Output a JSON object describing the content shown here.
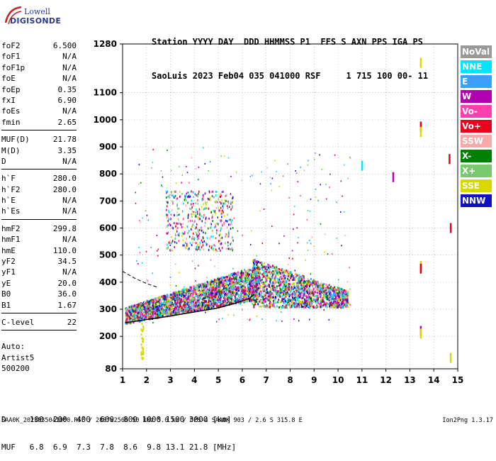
{
  "logo": {
    "line1": "Lowell",
    "line2": "DIGISONDE"
  },
  "header": {
    "line1": "Station YYYY DAY  DDD HHMMSS P1  FFS S AXN PPS IGA PS",
    "line2": "SaoLuis 2023 Feb04 035 041000 RSF     1 715 100 00- 11"
  },
  "params": [
    {
      "label": "foF2",
      "value": "6.500"
    },
    {
      "label": "foF1",
      "value": "N/A"
    },
    {
      "label": "foF1p",
      "value": "N/A"
    },
    {
      "label": "foE",
      "value": "N/A"
    },
    {
      "label": "foEp",
      "value": "0.35"
    },
    {
      "label": "fxI",
      "value": "6.90"
    },
    {
      "label": "foEs",
      "value": "N/A"
    },
    {
      "label": "fmin",
      "value": "2.65"
    },
    {
      "sep": true
    },
    {
      "label": "MUF(D)",
      "value": "21.78"
    },
    {
      "label": "M(D)",
      "value": "3.35"
    },
    {
      "label": "D",
      "value": "N/A"
    },
    {
      "sep": true
    },
    {
      "label": "h`F",
      "value": "280.0"
    },
    {
      "label": "h`F2",
      "value": "280.0"
    },
    {
      "label": "h`E",
      "value": "N/A"
    },
    {
      "label": "h`Es",
      "value": "N/A"
    },
    {
      "sep": true
    },
    {
      "label": "hmF2",
      "value": "299.8"
    },
    {
      "label": "hmF1",
      "value": "N/A"
    },
    {
      "label": "hmE",
      "value": "110.0"
    },
    {
      "label": "yF2",
      "value": "34.5"
    },
    {
      "label": "yF1",
      "value": "N/A"
    },
    {
      "label": "yE",
      "value": "20.0"
    },
    {
      "label": "B0",
      "value": "36.0"
    },
    {
      "label": "B1",
      "value": "1.67"
    },
    {
      "sep": true
    },
    {
      "label": "C-level",
      "value": "22"
    },
    {
      "sep": true
    }
  ],
  "auto": {
    "line1": "Auto:",
    "line2": "Artist5",
    "line3": "500200"
  },
  "legend": [
    {
      "label": "NoVal",
      "color": "#999999"
    },
    {
      "label": "NNE",
      "color": "#00e5ff"
    },
    {
      "label": "E",
      "color": "#3aa0ff"
    },
    {
      "label": "W",
      "color": "#b000b0"
    },
    {
      "label": "Vo-",
      "color": "#ff3fb0"
    },
    {
      "label": "Vo+",
      "color": "#e8001c"
    },
    {
      "label": "SSW",
      "color": "#f7a8a8"
    },
    {
      "label": "X-",
      "color": "#008000"
    },
    {
      "label": "X+",
      "color": "#7bc96f"
    },
    {
      "label": "SSE",
      "color": "#d8d800"
    },
    {
      "label": "NNW",
      "color": "#1010c8"
    }
  ],
  "chart_data": {
    "type": "scatter",
    "xlim": [
      1,
      15
    ],
    "ylim": [
      80,
      1280
    ],
    "x_ticks": [
      "1",
      "2",
      "3",
      "4",
      "5",
      "6",
      "7",
      "8",
      "9",
      "10",
      "11",
      "12",
      "13",
      "14",
      "15"
    ],
    "y_ticks": [
      "80",
      "200",
      "300",
      "400",
      "500",
      "600",
      "700",
      "800",
      "900",
      "1000",
      "1100",
      "1280"
    ],
    "grid": true,
    "trace_points": [
      {
        "f": 1.1,
        "h": 250
      },
      {
        "f": 2.0,
        "h": 262
      },
      {
        "f": 3.0,
        "h": 275
      },
      {
        "f": 4.0,
        "h": 290
      },
      {
        "f": 5.0,
        "h": 305
      },
      {
        "f": 5.8,
        "h": 325
      },
      {
        "f": 6.3,
        "h": 340
      },
      {
        "f": 6.5,
        "h": 355
      }
    ],
    "dashed_points": [
      {
        "f": 1.0,
        "h": 440
      },
      {
        "f": 1.5,
        "h": 415
      },
      {
        "f": 2.0,
        "h": 395
      },
      {
        "f": 2.5,
        "h": 380
      }
    ],
    "isolated_marks": [
      {
        "f": 13.45,
        "h": 1210,
        "color": "#d8d800"
      },
      {
        "f": 13.45,
        "h": 975,
        "color": "#e8001c"
      },
      {
        "f": 13.45,
        "h": 955,
        "color": "#d8d800"
      },
      {
        "f": 13.45,
        "h": 460,
        "color": "#d8d800"
      },
      {
        "f": 13.45,
        "h": 450,
        "color": "#e8001c"
      },
      {
        "f": 13.45,
        "h": 220,
        "color": "#b000b0"
      },
      {
        "f": 13.45,
        "h": 210,
        "color": "#d8d800"
      },
      {
        "f": 14.7,
        "h": 600,
        "color": "#e8001c"
      },
      {
        "f": 14.65,
        "h": 855,
        "color": "#e8001c"
      },
      {
        "f": 12.3,
        "h": 788,
        "color": "#b000b0"
      },
      {
        "f": 11.0,
        "h": 830,
        "color": "#00e5ff"
      },
      {
        "f": 14.7,
        "h": 120,
        "color": "#d8d800"
      }
    ]
  },
  "bottom": {
    "line1": "D     100  200  400  600  800 1000 1500 3000 [km]",
    "line2": "MUF   6.8  6.9  7.3  7.8  8.6  9.8 13.1 21.8 [MHz]"
  },
  "footer": "SAA0K_2023035041000.RSF / 280fx256h 50 kHz 5.0 km / DPS-4 SAA0K 903 / 2.6 S 315.8 E",
  "version": "Ion2Png 1.3.17"
}
